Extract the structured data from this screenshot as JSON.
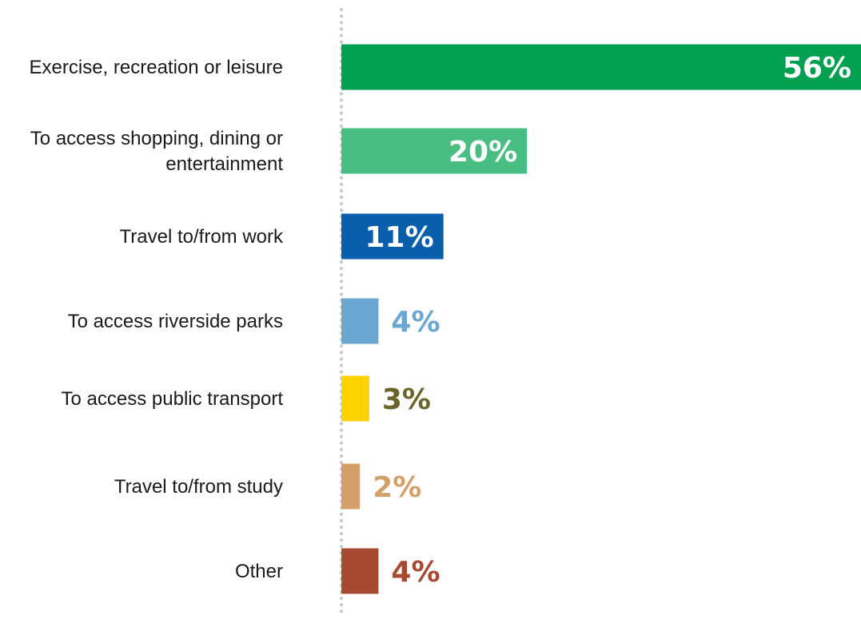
{
  "chart_data": {
    "type": "bar",
    "orientation": "horizontal",
    "categories": [
      "Exercise, recreation or leisure",
      "To access shopping, dining or entertainment",
      "Travel to/from work",
      "To access riverside parks",
      "To access public transport",
      "Travel to/from study",
      "Other"
    ],
    "category_lines": [
      [
        "Exercise, recreation or leisure"
      ],
      [
        "To access shopping, dining or",
        "entertainment"
      ],
      [
        "Travel to/from work"
      ],
      [
        "To access riverside parks"
      ],
      [
        "To access public transport"
      ],
      [
        "Travel to/from study"
      ],
      [
        "Other"
      ]
    ],
    "values": [
      56,
      20,
      11,
      4,
      3,
      2,
      4
    ],
    "value_labels": [
      "56%",
      "20%",
      "11%",
      "4%",
      "3%",
      "2%",
      "4%"
    ],
    "unit": "%",
    "bar_colors": [
      "#00a050",
      "#48be82",
      "#0a5fad",
      "#6aa6d2",
      "#ffd200",
      "#d4a06a",
      "#a64b2f"
    ],
    "label_colors": [
      "#ffffff",
      "#ffffff",
      "#ffffff",
      "#6aa6d2",
      "#6b6428",
      "#d4a06a",
      "#a64b2f"
    ],
    "label_inside": [
      true,
      true,
      true,
      false,
      false,
      false,
      false
    ],
    "baseline_style": "dotted",
    "baseline_color": "#c8c8c8",
    "xlim": [
      0,
      56
    ],
    "title": "",
    "xlabel": "",
    "ylabel": "",
    "grid": false,
    "legend": "none"
  }
}
